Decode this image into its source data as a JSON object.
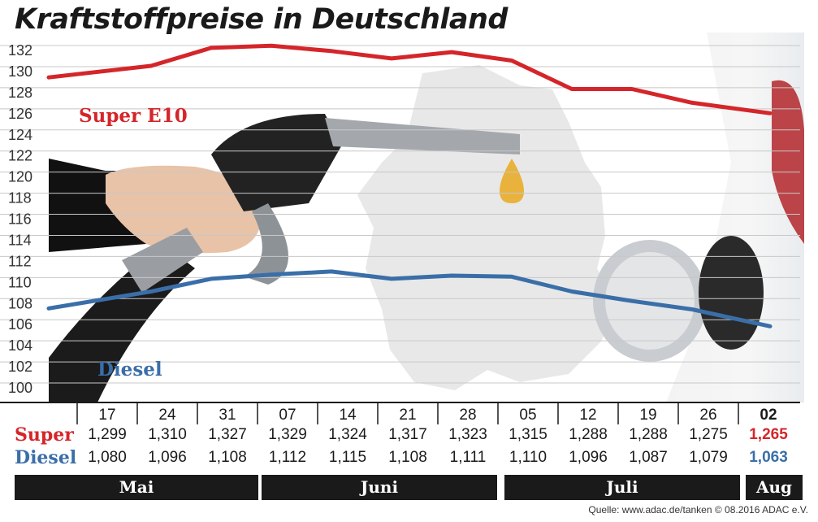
{
  "title": "Kraftstoffpreise in Deutschland",
  "source": "Quelle: www.adac.de/tanken  © 08.2016  ADAC e.V.",
  "colors": {
    "super": "#d4262a",
    "diesel": "#3a6ea8",
    "dark": "#1a1a1a"
  },
  "chart_data": {
    "type": "line",
    "title": "Kraftstoffpreise in Deutschland",
    "categories": [
      "17",
      "24",
      "31",
      "07",
      "14",
      "21",
      "28",
      "05",
      "12",
      "19",
      "26",
      "02"
    ],
    "ylim": [
      100,
      132
    ],
    "yticks": [
      100,
      102,
      104,
      106,
      108,
      110,
      112,
      114,
      116,
      118,
      120,
      122,
      124,
      126,
      128,
      130,
      132
    ],
    "grid": true,
    "series": [
      {
        "name": "Super E10",
        "key": "super",
        "values": [
          129.9,
          131.0,
          132.7,
          132.9,
          132.4,
          131.7,
          132.3,
          131.5,
          128.8,
          128.8,
          127.5,
          126.5
        ]
      },
      {
        "name": "Diesel",
        "key": "diesel",
        "values": [
          108.0,
          109.6,
          110.8,
          111.2,
          111.5,
          110.8,
          111.1,
          111.0,
          109.6,
          108.7,
          107.9,
          106.3
        ]
      }
    ]
  },
  "table": {
    "super_label": "Super",
    "diesel_label": "Diesel",
    "super": [
      "1,299",
      "1,310",
      "1,327",
      "1,329",
      "1,324",
      "1,317",
      "1,323",
      "1,315",
      "1,288",
      "1,288",
      "1,275",
      "1,265"
    ],
    "diesel": [
      "1,080",
      "1,096",
      "1,108",
      "1,112",
      "1,115",
      "1,108",
      "1,111",
      "1,110",
      "1,096",
      "1,087",
      "1,079",
      "1,063"
    ]
  },
  "months": [
    "Mai",
    "Juni",
    "Juli",
    "Aug"
  ]
}
